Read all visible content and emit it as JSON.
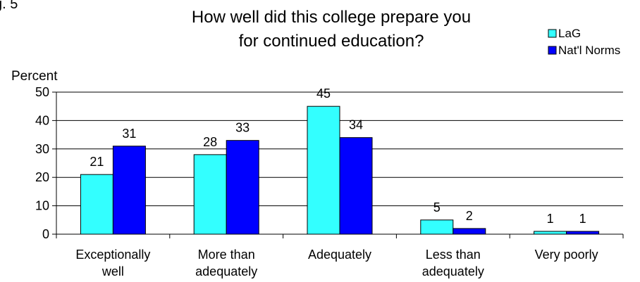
{
  "figure_label": "g. 5",
  "chart_data": {
    "type": "bar",
    "title_lines": [
      "How well did this college prepare you",
      "for continued education?"
    ],
    "ylabel": "Percent",
    "xlabel": "",
    "ylim": [
      0,
      50
    ],
    "yticks": [
      0,
      10,
      20,
      30,
      40,
      50
    ],
    "grid": true,
    "legend_position": "top-right",
    "categories": [
      [
        "Exceptionally",
        "well"
      ],
      [
        "More than",
        "adequately"
      ],
      [
        "Adequately"
      ],
      [
        "Less than",
        "adequately"
      ],
      [
        "Very poorly"
      ]
    ],
    "series": [
      {
        "name": "LaG",
        "color": "#33ffff",
        "values": [
          21,
          28,
          45,
          5,
          1
        ]
      },
      {
        "name": "Nat'l Norms",
        "color": "#0000ff",
        "values": [
          31,
          33,
          34,
          2,
          1
        ]
      }
    ]
  }
}
